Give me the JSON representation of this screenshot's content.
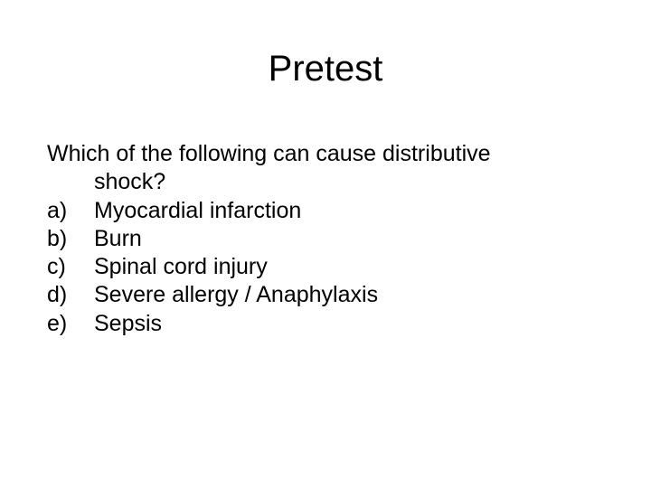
{
  "slide": {
    "title": "Pretest",
    "question_line1": "Which of the following can cause distributive",
    "question_line2": "shock?",
    "options": [
      {
        "marker": "a)",
        "text": "Myocardial infarction"
      },
      {
        "marker": "b)",
        "text": "Burn"
      },
      {
        "marker": "c)",
        "text": "Spinal cord injury"
      },
      {
        "marker": "d)",
        "text": "Severe allergy / Anaphylaxis"
      },
      {
        "marker": "e)",
        "text": "Sepsis"
      }
    ],
    "background_color": "#ffffff",
    "text_color": "#000000",
    "title_fontsize": 40,
    "body_fontsize": 25,
    "font_family": "Arial"
  }
}
